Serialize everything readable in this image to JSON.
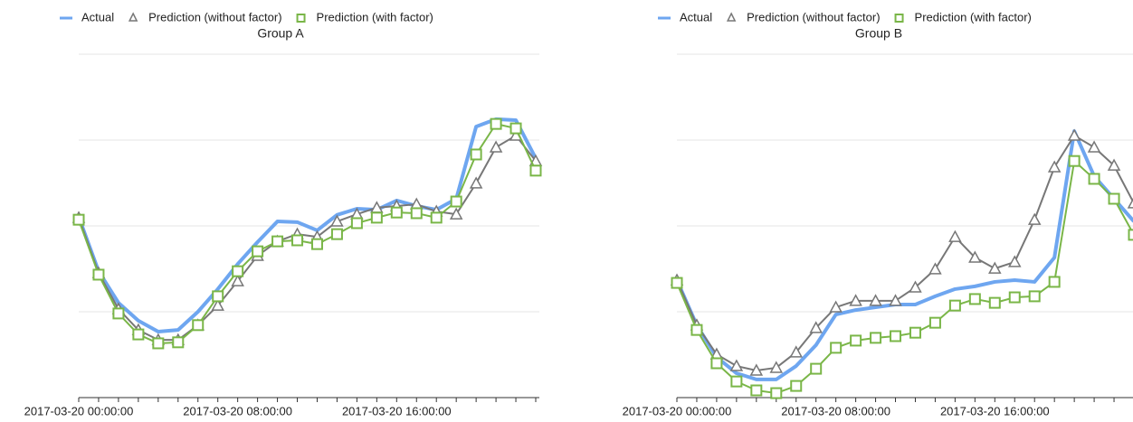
{
  "chart_data": [
    {
      "type": "line",
      "title": "Group A",
      "categories": [
        "2017-03-20 00:00:00",
        null,
        null,
        null,
        null,
        null,
        null,
        null,
        "2017-03-20 08:00:00",
        null,
        null,
        null,
        null,
        null,
        null,
        null,
        "2017-03-20 16:00:00",
        null,
        null,
        null,
        null,
        null,
        null,
        null
      ],
      "ylim": [
        0,
        100
      ],
      "yticks": [
        0,
        25,
        50,
        75,
        100
      ],
      "grid": true,
      "series": [
        {
          "name": "Actual",
          "color": "#6ea6f0",
          "marker": "none",
          "values": [
            52.6,
            36.8,
            27.6,
            22.4,
            19.2,
            19.7,
            25,
            31.6,
            38.9,
            45.3,
            51.3,
            51.1,
            48.7,
            53.2,
            55,
            54.7,
            57.4,
            55.8,
            54.7,
            57.9,
            78.9,
            81.1,
            80.8,
            69.7
          ]
        },
        {
          "name": "Prediction (without factor)",
          "color": "#777777",
          "marker": "triangle",
          "values": [
            52.4,
            36.3,
            25.8,
            19.7,
            16.8,
            16.8,
            21.1,
            26.8,
            33.9,
            41.3,
            45.5,
            47.6,
            46.8,
            51.3,
            53.4,
            55.3,
            55.8,
            56.3,
            54.2,
            53.4,
            62.4,
            72.9,
            76.3,
            68.9
          ]
        },
        {
          "name": "Prediction (with factor)",
          "color": "#7ab648",
          "marker": "square",
          "values": [
            51.8,
            35.8,
            24.5,
            18.4,
            15.8,
            16.1,
            21.1,
            29.5,
            36.8,
            42.6,
            45.5,
            45.8,
            44.7,
            47.6,
            50.8,
            52.4,
            53.9,
            53.7,
            52.4,
            57.1,
            70.8,
            79.7,
            78.4,
            66.1
          ]
        }
      ]
    },
    {
      "type": "line",
      "title": "Group B",
      "categories": [
        "2017-03-20 00:00:00",
        null,
        null,
        null,
        null,
        null,
        null,
        null,
        "2017-03-20 08:00:00",
        null,
        null,
        null,
        null,
        null,
        null,
        null,
        "2017-03-20 16:00:00",
        null,
        null,
        null,
        null,
        null,
        null,
        null
      ],
      "ylim": [
        0,
        100
      ],
      "yticks": [
        0,
        25,
        50,
        75,
        100
      ],
      "grid": true,
      "series": [
        {
          "name": "Actual",
          "color": "#6ea6f0",
          "marker": "none",
          "values": [
            34.2,
            21.1,
            11.8,
            7.1,
            5.3,
            5.3,
            9.2,
            15.3,
            24.2,
            25.5,
            26.3,
            27.1,
            27.1,
            29.5,
            31.6,
            32.4,
            33.7,
            34.2,
            33.7,
            40.8,
            77.6,
            64.5,
            57.9,
            51.3
          ]
        },
        {
          "name": "Prediction (without factor)",
          "color": "#777777",
          "marker": "triangle",
          "values": [
            34.2,
            21.1,
            12.6,
            9.2,
            7.9,
            8.7,
            13.2,
            20.3,
            26.3,
            28.2,
            28.2,
            28.2,
            32.1,
            37.4,
            46.8,
            40.8,
            37.6,
            39.5,
            51.8,
            67.1,
            76.3,
            72.9,
            67.6,
            56.6
          ]
        },
        {
          "name": "Prediction (with factor)",
          "color": "#7ab648",
          "marker": "square",
          "values": [
            33.4,
            19.7,
            10,
            4.7,
            2.1,
            1.3,
            3.4,
            8.4,
            14.5,
            16.6,
            17.4,
            17.9,
            18.9,
            21.8,
            26.8,
            28.7,
            27.6,
            29.2,
            29.5,
            33.7,
            68.9,
            63.7,
            57.9,
            47.4
          ]
        }
      ]
    }
  ]
}
